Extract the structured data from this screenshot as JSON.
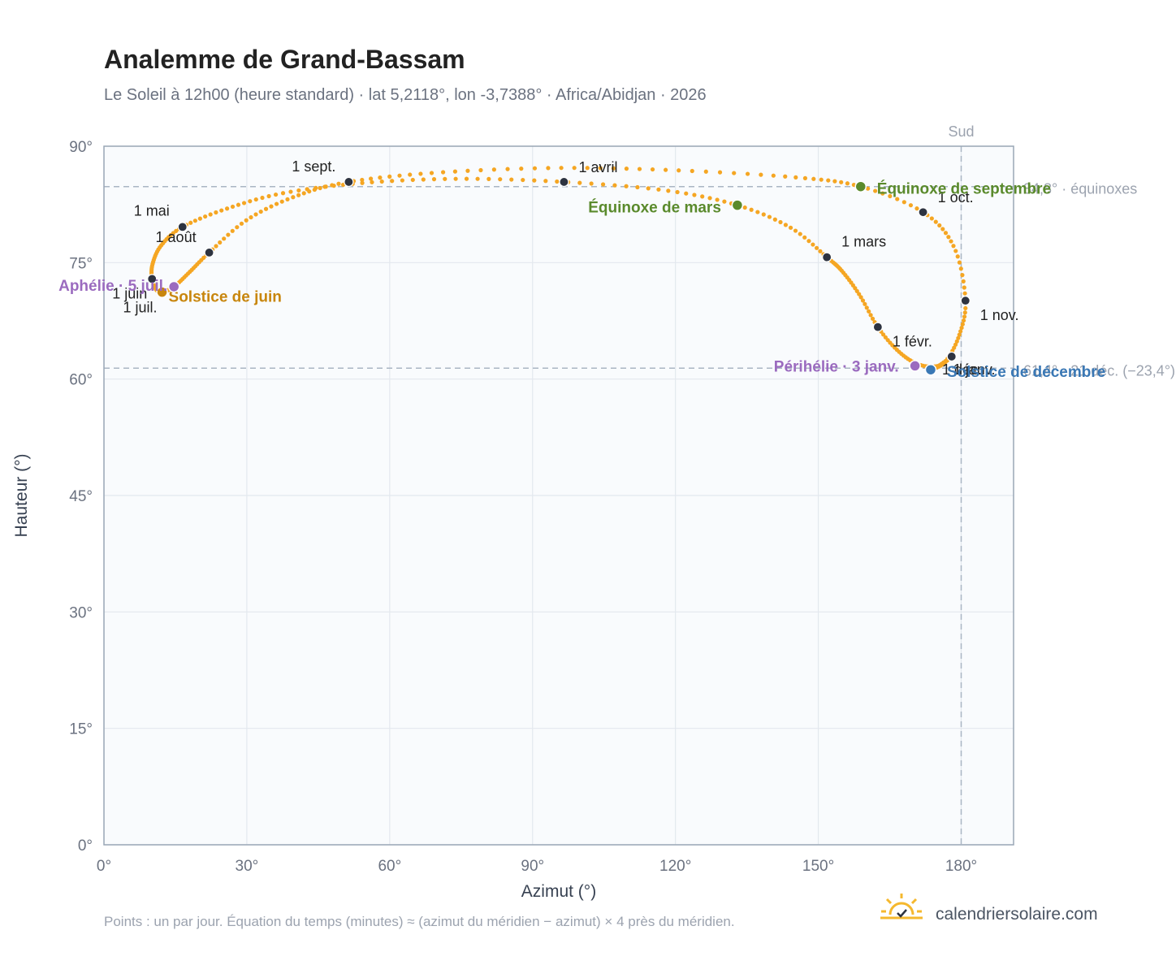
{
  "header": {
    "title": "Analemme de Grand-Bassam",
    "subtitle": "Le Soleil à 12h00 (heure standard) · lat 5,2118°, lon -3,7388° · Africa/Abidjan · 2026"
  },
  "footer": {
    "note": "Points : un par jour. Équation du temps (minutes) ≈ (azimut du méridien − azimut) × 4 près du méridien.",
    "brand": "calendriersolaire.com"
  },
  "colors": {
    "curve": "#f5a623",
    "month_dot": "#2d3340",
    "solstice_june": "#c8860d",
    "solstice_december": "#3a78b5",
    "equinox": "#5a8a2c",
    "apsis": "#9b6bbf",
    "plot_bg": "#f9fbfd",
    "grid": "#e3e8ee",
    "frame": "#9aa7b6",
    "reference": "#aab6c4"
  },
  "chart_data": {
    "type": "scatter",
    "xlabel": "Azimut (°)",
    "ylabel": "Hauteur (°)",
    "xlim": [
      0,
      191
    ],
    "ylim": [
      0,
      90
    ],
    "xticks": [
      "0°",
      "30°",
      "60°",
      "90°",
      "120°",
      "150°",
      "180°"
    ],
    "yticks": [
      "0°",
      "15°",
      "30°",
      "45°",
      "60°",
      "75°",
      "90°"
    ],
    "grid": true,
    "reference_lines": {
      "meridian": {
        "x": 180,
        "label": "Sud"
      },
      "equinox_altitude": {
        "y": 84.8,
        "label": "84,8° · équinoxes"
      },
      "december_solstice_altitude": {
        "y": 61.4,
        "label": "61,4° · 21 déc. (−23,4°)"
      }
    },
    "month_markers": [
      {
        "label": "1 janv.",
        "date": "2026-01-01",
        "azimuth": 178.0,
        "altitude": 62.9
      },
      {
        "label": "1 févr.",
        "date": "2026-02-01",
        "azimuth": 162.5,
        "altitude": 66.7
      },
      {
        "label": "1 mars",
        "date": "2026-03-01",
        "azimuth": 151.8,
        "altitude": 75.7
      },
      {
        "label": "1 avril",
        "date": "2026-04-01",
        "azimuth": 96.6,
        "altitude": 85.4
      },
      {
        "label": "1 mai",
        "date": "2026-05-01",
        "azimuth": 16.5,
        "altitude": 79.6
      },
      {
        "label": "1 juin",
        "date": "2026-06-01",
        "azimuth": 10.1,
        "altitude": 72.9
      },
      {
        "label": "1 juil.",
        "date": "2026-07-01",
        "azimuth": 12.2,
        "altitude": 71.2
      },
      {
        "label": "1 août",
        "date": "2026-08-01",
        "azimuth": 22.1,
        "altitude": 76.3
      },
      {
        "label": "1 sept.",
        "date": "2026-09-01",
        "azimuth": 51.4,
        "altitude": 85.4
      },
      {
        "label": "1 oct.",
        "date": "2026-10-01",
        "azimuth": 172.0,
        "altitude": 81.5
      },
      {
        "label": "1 nov.",
        "date": "2026-11-01",
        "azimuth": 180.9,
        "altitude": 70.1
      },
      {
        "label": "1 déc.",
        "date": "2026-12-01",
        "azimuth": 173.6,
        "altitude": 61.2
      }
    ],
    "events": [
      {
        "label": "Solstice de juin",
        "type": "solstice_june",
        "azimuth": 12.2,
        "altitude": 71.2
      },
      {
        "label": "Aphélie · 5 juil.",
        "type": "apsis",
        "azimuth": 14.7,
        "altitude": 71.9
      },
      {
        "label": "Équinoxe de mars",
        "type": "equinox",
        "azimuth": 133.0,
        "altitude": 82.4
      },
      {
        "label": "Équinoxe de septembre",
        "type": "equinox",
        "azimuth": 158.9,
        "altitude": 84.8
      },
      {
        "label": "Périhélie · 3 janv.",
        "type": "apsis",
        "azimuth": 170.3,
        "altitude": 61.7
      },
      {
        "label": "Solstice de décembre",
        "type": "solstice_december",
        "azimuth": 173.6,
        "altitude": 61.2
      }
    ],
    "daily_path": {
      "description_of_points": "one point per day, 2026",
      "knots": [
        [
          178.0,
          62.9
        ],
        [
          175.2,
          61.7
        ],
        [
          171.0,
          61.9
        ],
        [
          166.8,
          63.6
        ],
        [
          162.5,
          66.7
        ],
        [
          158.7,
          70.8
        ],
        [
          155.0,
          73.9
        ],
        [
          151.8,
          75.7
        ],
        [
          144.2,
          79.5
        ],
        [
          133.0,
          82.4
        ],
        [
          118.0,
          84.3
        ],
        [
          96.6,
          85.4
        ],
        [
          75.0,
          85.8
        ],
        [
          55.0,
          85.3
        ],
        [
          38.0,
          84.0
        ],
        [
          26.0,
          82.0
        ],
        [
          16.5,
          79.6
        ],
        [
          12.0,
          77.2
        ],
        [
          10.2,
          74.8
        ],
        [
          10.1,
          72.9
        ],
        [
          11.0,
          71.5
        ],
        [
          12.2,
          71.2
        ],
        [
          14.7,
          71.9
        ],
        [
          18.0,
          73.8
        ],
        [
          22.1,
          76.3
        ],
        [
          30.0,
          80.5
        ],
        [
          40.0,
          83.5
        ],
        [
          51.4,
          85.4
        ],
        [
          70.0,
          86.6
        ],
        [
          95.0,
          87.2
        ],
        [
          120.0,
          86.9
        ],
        [
          145.0,
          86.0
        ],
        [
          158.9,
          84.8
        ],
        [
          172.0,
          81.5
        ],
        [
          178.5,
          77.0
        ],
        [
          180.9,
          70.1
        ],
        [
          179.5,
          65.5
        ],
        [
          176.6,
          62.2
        ],
        [
          173.6,
          61.2
        ],
        [
          174.8,
          61.5
        ],
        [
          178.0,
          62.9
        ]
      ]
    }
  }
}
